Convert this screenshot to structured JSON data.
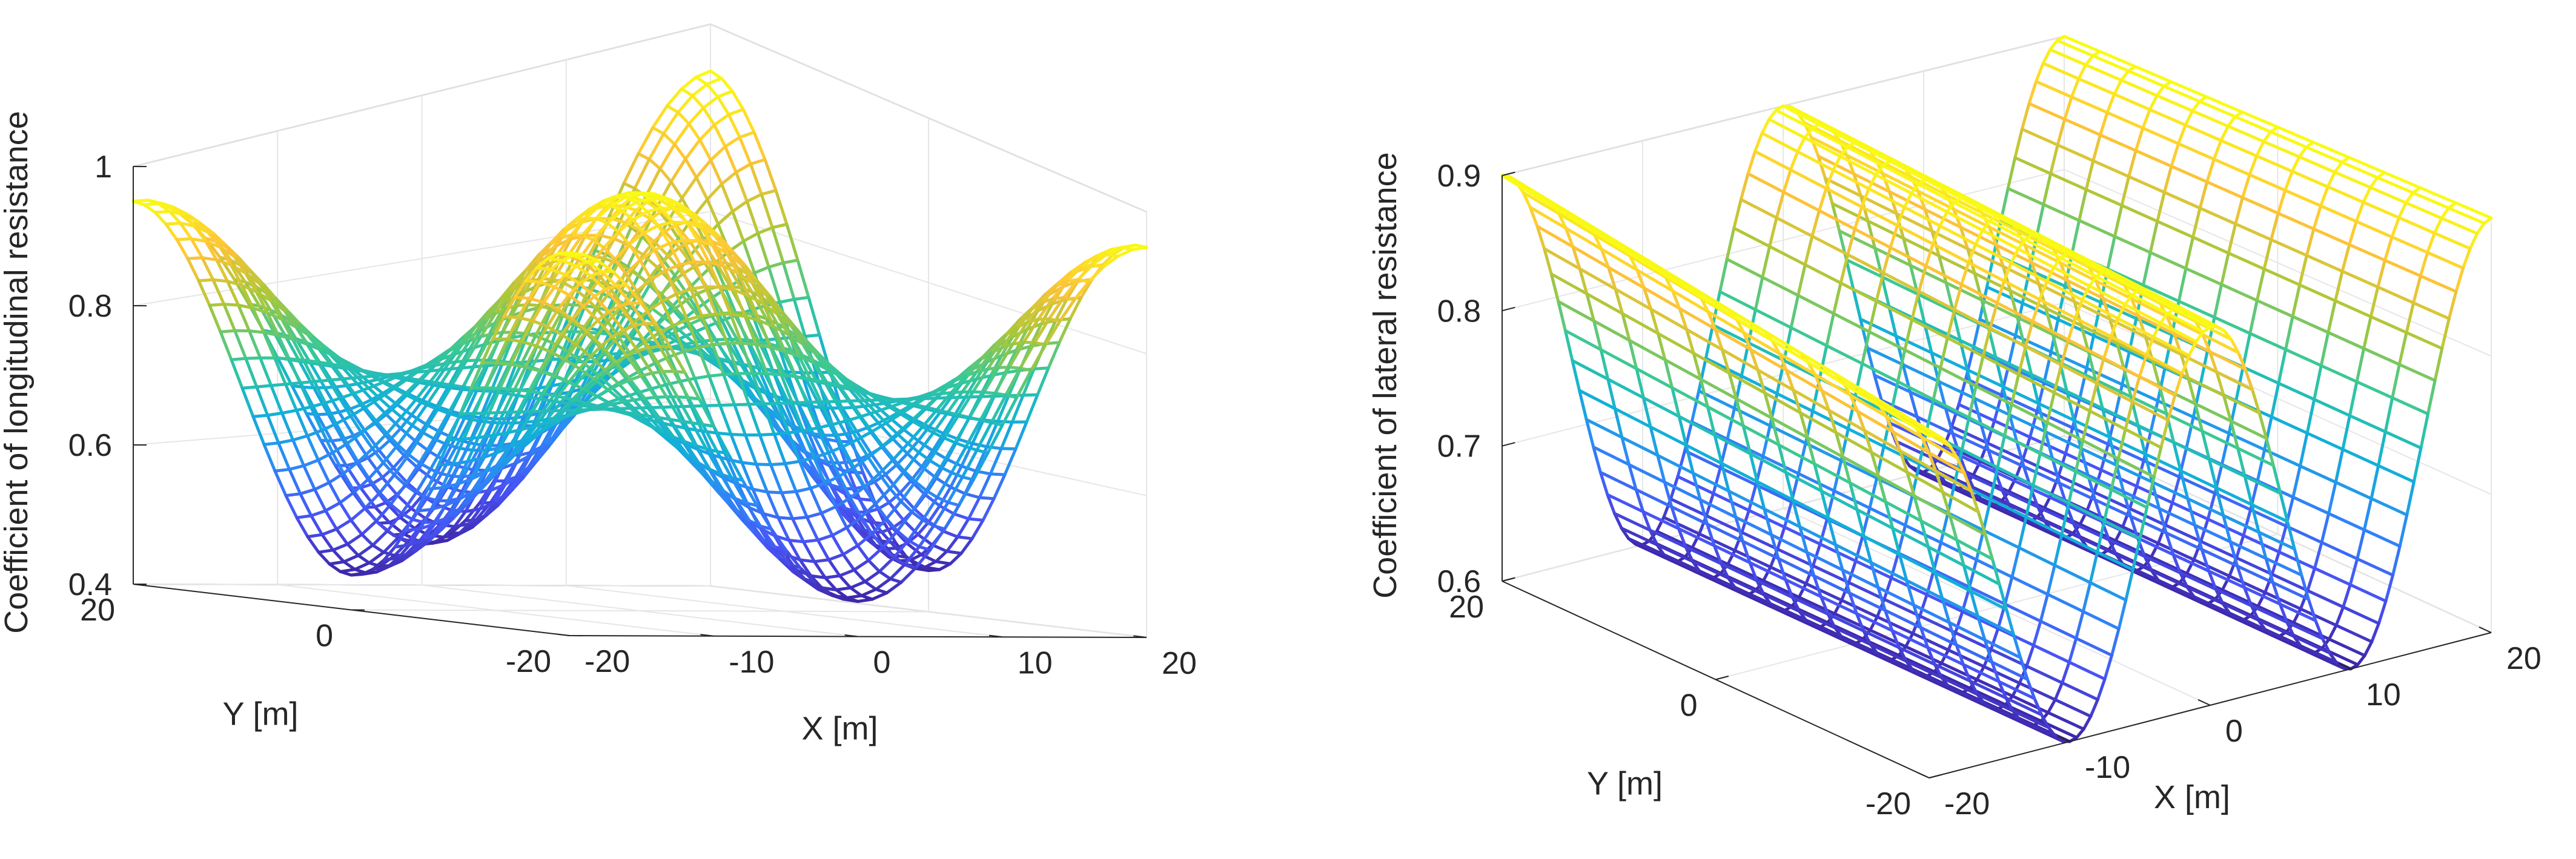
{
  "chart_data": [
    {
      "type": "surface",
      "style": "3d-mesh",
      "colormap": "parula",
      "grid": true,
      "box": true,
      "xlabel": "X [m]",
      "ylabel": "Y [m]",
      "zlabel": "Coefficient of longitudinal resistance",
      "xlim": [
        -20,
        20
      ],
      "ylim": [
        -20,
        20
      ],
      "zlim": [
        0.4,
        1.0
      ],
      "x_ticks": [
        "-20",
        "-10",
        "0",
        "10",
        "20"
      ],
      "y_ticks": [
        "-20",
        "0",
        "20"
      ],
      "z_ticks": [
        "0.4",
        "0.6",
        "0.8",
        "1"
      ],
      "surface": {
        "description_formula": "z = 0.7 + 0.25*cos(pi*x/20)*cos(pi*y/20)",
        "mean": 0.7,
        "amplitude": 0.25,
        "x_range": [
          -20,
          20
        ],
        "y_range": [
          -20,
          20
        ],
        "x_steps": 40,
        "y_steps": 40
      }
    },
    {
      "type": "surface",
      "style": "3d-mesh",
      "colormap": "parula",
      "grid": true,
      "box": true,
      "xlabel": "X [m]",
      "ylabel": "Y [m]",
      "zlabel": "Coefficient of lateral resistance",
      "xlim": [
        -20,
        20
      ],
      "ylim": [
        -20,
        20
      ],
      "zlim": [
        0.6,
        0.9
      ],
      "x_ticks": [
        "-20",
        "-10",
        "0",
        "10",
        "20"
      ],
      "y_ticks": [
        "-20",
        "0",
        "20"
      ],
      "z_ticks": [
        "0.6",
        "0.7",
        "0.8",
        "0.9"
      ],
      "surface": {
        "description_formula": "z = 0.75 + 0.15*cos(pi*x/10)",
        "mean": 0.75,
        "amplitude": 0.15,
        "x_range": [
          -20,
          20
        ],
        "y_range": [
          -20,
          20
        ],
        "x_steps": 80,
        "y_steps": 12
      }
    }
  ]
}
